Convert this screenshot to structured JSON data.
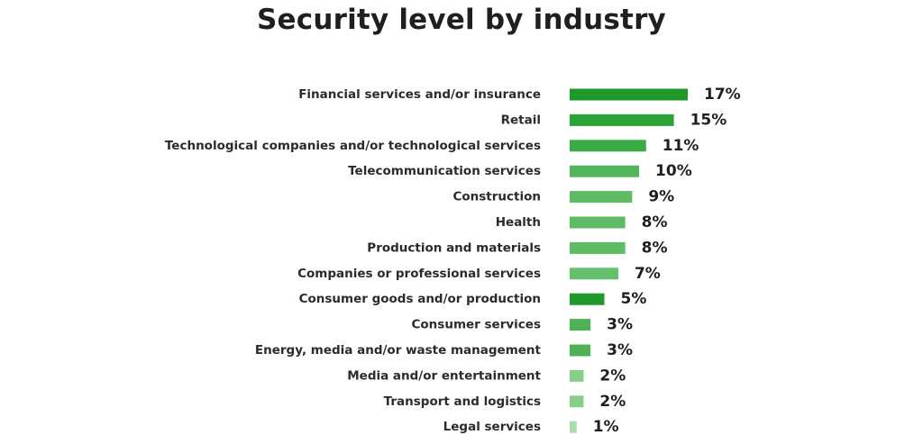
{
  "chart_data": {
    "type": "bar",
    "orientation": "horizontal",
    "title": "Security level by industry",
    "categories": [
      "Financial services and/or insurance",
      "Retail",
      "Technological companies and/or technological services",
      "Telecommunication services",
      "Construction",
      "Health",
      "Production and materials",
      "Companies or professional services",
      "Consumer goods and/or production",
      "Consumer services",
      "Energy, media and/or waste management",
      "Media and/or entertainment",
      "Transport and logistics",
      "Legal services"
    ],
    "values": [
      17,
      15,
      11,
      10,
      9,
      8,
      8,
      7,
      5,
      3,
      3,
      2,
      2,
      1
    ],
    "value_labels": [
      "17%",
      "15%",
      "11%",
      "10%",
      "9%",
      "8%",
      "8%",
      "7%",
      "5%",
      "3%",
      "3%",
      "2%",
      "2%",
      "1%"
    ],
    "bar_colors": [
      "#1f9a2a",
      "#2aa336",
      "#3cac46",
      "#54b65c",
      "#5cbb63",
      "#5cbb63",
      "#5cbb63",
      "#66bf6c",
      "#1f9a2a",
      "#4eb357",
      "#4eb357",
      "#86cf89",
      "#86cf89",
      "#a8dca9"
    ],
    "xlim": [
      0,
      17
    ],
    "grid": false,
    "legend": "none"
  }
}
